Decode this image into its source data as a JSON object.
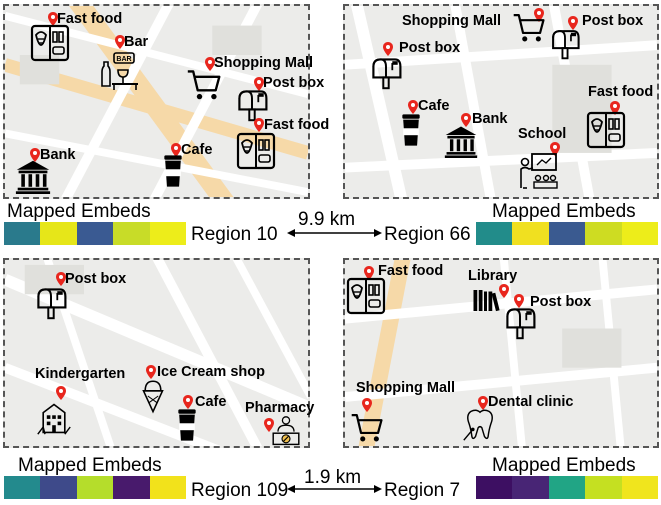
{
  "panels": {
    "top_left": {
      "pois": [
        "Fast food",
        "Bar",
        "Shopping Mall",
        "Post box",
        "Fast food",
        "Bank",
        "Cafe"
      ]
    },
    "top_right": {
      "pois": [
        "Shopping Mall",
        "Post box",
        "Post box",
        "Fast food",
        "Cafe",
        "Bank",
        "School"
      ]
    },
    "bottom_left": {
      "pois": [
        "Post box",
        "Kindergarten",
        "Ice Cream shop",
        "Cafe",
        "Pharmacy"
      ]
    },
    "bottom_right": {
      "pois": [
        "Fast food",
        "Library",
        "Post box",
        "Shopping Mall",
        "Dental clinic"
      ]
    }
  },
  "top_pair": {
    "left_embed_title": "Mapped Embeds",
    "right_embed_title": "Mapped Embeds",
    "left_region": "Region 10",
    "right_region": "Region 66",
    "distance": "9.9 km",
    "left_colors": [
      "#2a7a8c",
      "#e6e619",
      "#3a5a92",
      "#c8dc28",
      "#eded1a"
    ],
    "right_colors": [
      "#228c8a",
      "#f0e020",
      "#3a5a90",
      "#cedc22",
      "#eded1a"
    ]
  },
  "bottom_pair": {
    "left_embed_title": "Mapped Embeds",
    "right_embed_title": "Mapped Embeds",
    "left_region": "Region 109",
    "right_region": "Region 7",
    "distance": "1.9 km",
    "left_colors": [
      "#238a8d",
      "#3e4a8a",
      "#b5dd2b",
      "#481a6c",
      "#f2e21b"
    ],
    "right_colors": [
      "#3d0f62",
      "#482575",
      "#21a585",
      "#c5e021",
      "#f0e51d"
    ]
  },
  "icons": {
    "pin": "map-pin-icon",
    "fast_food": "fast-food-icon",
    "bar": "bar-icon",
    "shopping_mall": "shopping-cart-icon",
    "post_box": "mailbox-icon",
    "bank": "bank-icon",
    "cafe": "coffee-cup-icon",
    "school": "school-icon",
    "kindergarten": "kindergarten-icon",
    "ice_cream": "ice-cream-icon",
    "pharmacy": "pharmacy-icon",
    "library": "library-icon",
    "dental": "tooth-icon"
  },
  "colors": {
    "pin": "#e8261d",
    "map_bg": "#ececea",
    "road": "#ffffff",
    "main_road": "#f6d9a8"
  }
}
